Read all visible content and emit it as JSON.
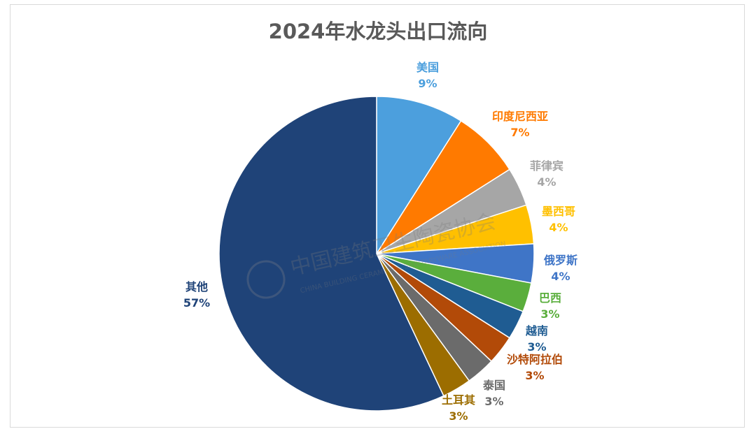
{
  "chart_data": {
    "type": "pie",
    "title": "2024年水龙头出口流向",
    "unit": "%",
    "slices": [
      {
        "name": "美国",
        "value": 9,
        "label": "9%",
        "color": "#4C9FDD"
      },
      {
        "name": "印度尼西亚",
        "value": 7,
        "label": "7%",
        "color": "#FF7A00"
      },
      {
        "name": "菲律宾",
        "value": 4,
        "label": "4%",
        "color": "#A6A6A6"
      },
      {
        "name": "墨西哥",
        "value": 4,
        "label": "4%",
        "color": "#FFC000"
      },
      {
        "name": "俄罗斯",
        "value": 4,
        "label": "4%",
        "color": "#3F75C7"
      },
      {
        "name": "巴西",
        "value": 3,
        "label": "3%",
        "color": "#5AAE3C"
      },
      {
        "name": "越南",
        "value": 3,
        "label": "3%",
        "color": "#1F5C92"
      },
      {
        "name": "沙特阿拉伯",
        "value": 3,
        "label": "3%",
        "color": "#B24A08"
      },
      {
        "name": "泰国",
        "value": 3,
        "label": "3%",
        "color": "#6B6B6B"
      },
      {
        "name": "土耳其",
        "value": 3,
        "label": "3%",
        "color": "#9C6D00"
      },
      {
        "name": "其他",
        "value": 57,
        "label": "57%",
        "color": "#1F4378"
      }
    ],
    "legend": "none"
  },
  "watermark": {
    "text_cn": "中国建筑卫生陶瓷协会",
    "text_en": "CHINA BUILDING CERAMICS & SANITARYWARE ASSOCIATION"
  }
}
